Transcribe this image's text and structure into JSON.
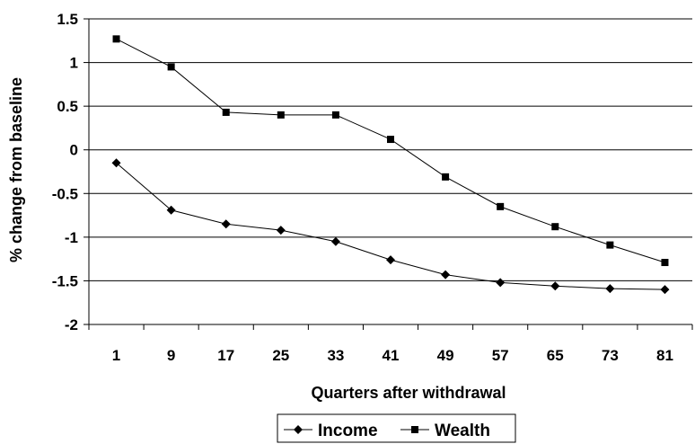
{
  "chart_data": {
    "type": "line",
    "title": "",
    "xlabel": "Quarters after withdrawal",
    "ylabel": "% change from baseline",
    "categories": [
      "1",
      "9",
      "17",
      "25",
      "33",
      "41",
      "49",
      "57",
      "65",
      "73",
      "81"
    ],
    "ylim": [
      -2,
      1.5
    ],
    "yticks": [
      "1.5",
      "1",
      "0.5",
      "0",
      "-0.5",
      "-1",
      "-1.5",
      "-2"
    ],
    "grid": "horizontal",
    "legend_position": "bottom",
    "series": [
      {
        "name": "Income",
        "marker": "diamond",
        "color": "#000000",
        "values": [
          -0.15,
          -0.69,
          -0.85,
          -0.92,
          -1.05,
          -1.26,
          -1.43,
          -1.52,
          -1.56,
          -1.59,
          -1.6
        ]
      },
      {
        "name": "Wealth",
        "marker": "square",
        "color": "#000000",
        "values": [
          1.27,
          0.95,
          0.43,
          0.4,
          0.4,
          0.12,
          -0.31,
          -0.65,
          -0.88,
          -1.09,
          -1.29
        ]
      }
    ]
  }
}
